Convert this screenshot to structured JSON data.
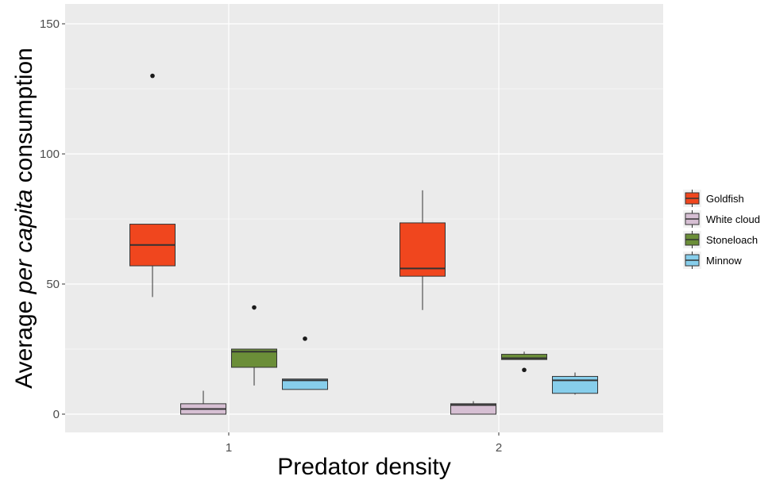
{
  "chart_data": {
    "type": "boxplot",
    "title": "",
    "xlabel": "Predator density",
    "ylabel": {
      "prefix": "Average ",
      "italic": "per capita",
      "suffix": " consumption"
    },
    "categories": [
      "1",
      "2"
    ],
    "ylim": [
      -7,
      150
    ],
    "yticks": [
      0,
      50,
      100,
      150
    ],
    "grid": true,
    "legend_position": "right",
    "series": [
      {
        "name": "Goldfish",
        "color": "#F0461E",
        "boxes": [
          {
            "category": "1",
            "whisker_low": 45,
            "q1": 57,
            "median": 65,
            "q3": 73,
            "whisker_high": 73,
            "outliers": [
              130
            ]
          },
          {
            "category": "2",
            "whisker_low": 40,
            "q1": 53,
            "median": 56,
            "q3": 73.5,
            "whisker_high": 86,
            "outliers": []
          }
        ]
      },
      {
        "name": "White cloud",
        "color": "#D6BFD3",
        "boxes": [
          {
            "category": "1",
            "whisker_low": 0,
            "q1": 0,
            "median": 2,
            "q3": 4,
            "whisker_high": 9,
            "outliers": []
          },
          {
            "category": "2",
            "whisker_low": 0,
            "q1": 0,
            "median": 3.5,
            "q3": 4,
            "whisker_high": 5,
            "outliers": []
          }
        ]
      },
      {
        "name": "Stoneloach",
        "color": "#6B8E38",
        "boxes": [
          {
            "category": "1",
            "whisker_low": 11,
            "q1": 18,
            "median": 24,
            "q3": 25,
            "whisker_high": 25,
            "outliers": [
              41
            ]
          },
          {
            "category": "2",
            "whisker_low": 21,
            "q1": 21,
            "median": 21.5,
            "q3": 23,
            "whisker_high": 24,
            "outliers": [
              17
            ]
          }
        ]
      },
      {
        "name": "Minnow",
        "color": "#87CEEB",
        "boxes": [
          {
            "category": "1",
            "whisker_low": 9.5,
            "q1": 9.5,
            "median": 13,
            "q3": 13.5,
            "whisker_high": 13.5,
            "outliers": [
              29
            ]
          },
          {
            "category": "2",
            "whisker_low": 7.5,
            "q1": 8,
            "median": 13,
            "q3": 14.5,
            "whisker_high": 16,
            "outliers": []
          }
        ]
      }
    ]
  }
}
